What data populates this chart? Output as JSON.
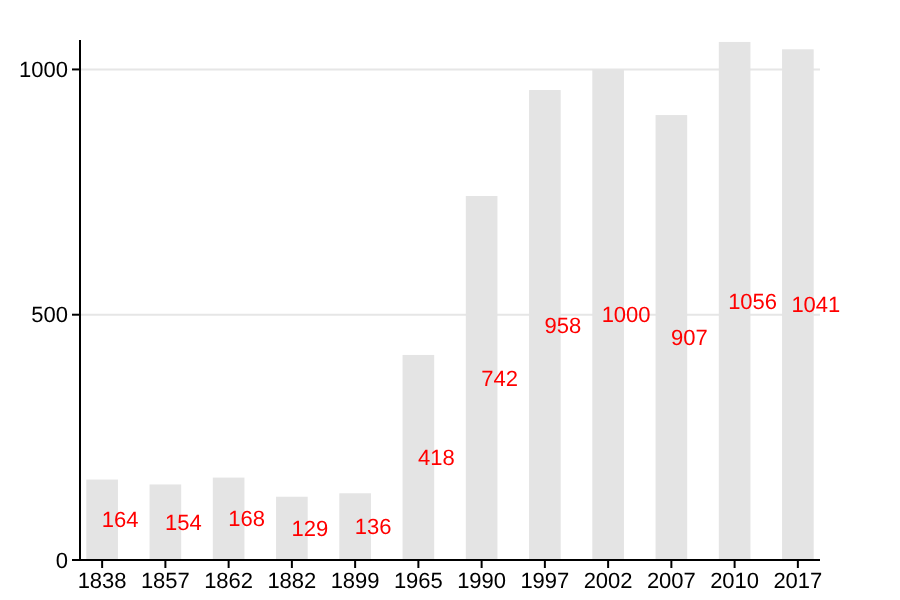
{
  "chart_data": {
    "type": "bar",
    "categories": [
      "1838",
      "1857",
      "1862",
      "1882",
      "1899",
      "1965",
      "1990",
      "1997",
      "2002",
      "2007",
      "2010",
      "2017"
    ],
    "values": [
      164,
      154,
      168,
      129,
      136,
      418,
      742,
      958,
      1000,
      907,
      1056,
      1041
    ],
    "color": "#e4e4e4",
    "ylim": [
      0,
      1060
    ],
    "yticks": [
      0,
      500,
      1000
    ],
    "grid": "y",
    "data_labels": true
  }
}
